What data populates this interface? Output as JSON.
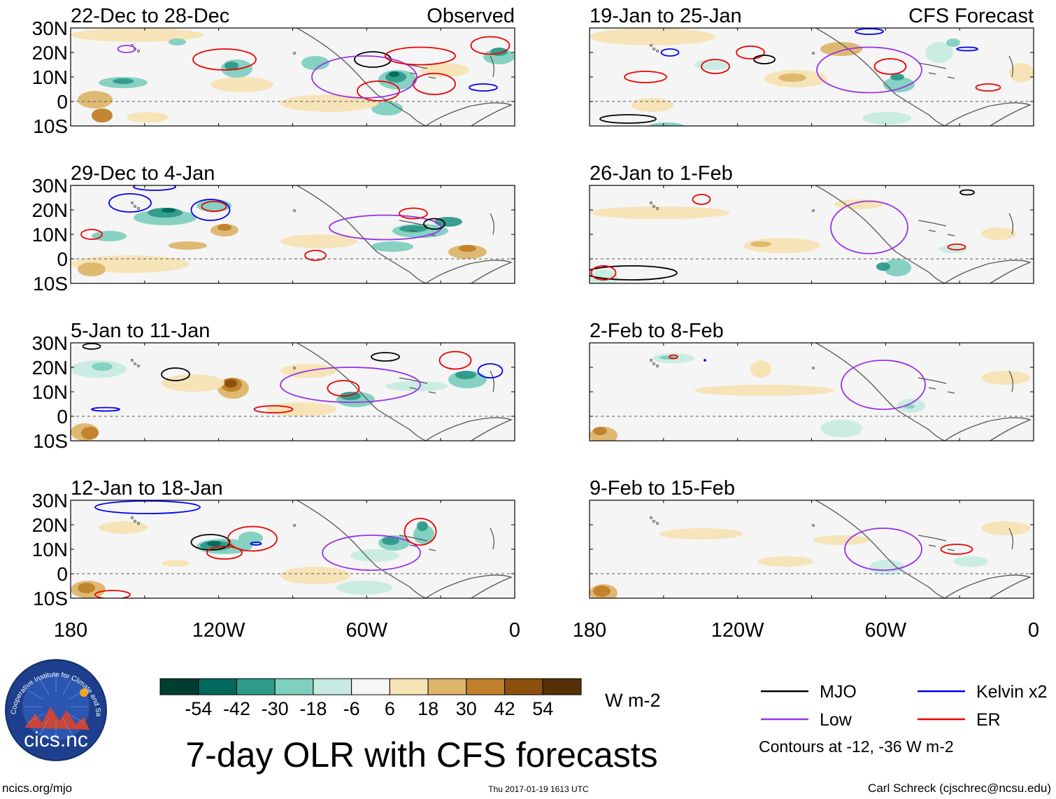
{
  "panels": [
    {
      "id": "p1",
      "title": "22-Dec to 28-Dec",
      "tag": "Observed"
    },
    {
      "id": "p2",
      "title": "29-Dec to 4-Jan",
      "tag": ""
    },
    {
      "id": "p3",
      "title": "5-Jan to 11-Jan",
      "tag": ""
    },
    {
      "id": "p4",
      "title": "12-Jan to 18-Jan",
      "tag": ""
    },
    {
      "id": "p5",
      "title": "19-Jan to 25-Jan",
      "tag": "CFS Forecast"
    },
    {
      "id": "p6",
      "title": "26-Jan to 1-Feb",
      "tag": ""
    },
    {
      "id": "p7",
      "title": "2-Feb to 8-Feb",
      "tag": ""
    },
    {
      "id": "p8",
      "title": "9-Feb to 15-Feb",
      "tag": ""
    }
  ],
  "lat_labels": [
    "30N",
    "20N",
    "10N",
    "0",
    "10S"
  ],
  "lon_labels": [
    "180",
    "120W",
    "60W",
    "0"
  ],
  "colorbar": {
    "ticks": [
      "-54",
      "-42",
      "-30",
      "-18",
      "-6",
      "6",
      "18",
      "30",
      "42",
      "54"
    ],
    "colors": [
      "#003d31",
      "#00695c",
      "#2e9a8a",
      "#7fcfbf",
      "#c7ebe2",
      "#f5f5f5",
      "#f6e3b4",
      "#ddb56b",
      "#bf8029",
      "#8a4e0d",
      "#553108"
    ],
    "unit": "W m-2"
  },
  "legend": [
    {
      "label": "MJO",
      "color": "#000000"
    },
    {
      "label": "Kelvin x2",
      "color": "#0000ee"
    },
    {
      "label": "Low",
      "color": "#9932e6"
    },
    {
      "label": "ER",
      "color": "#ee0000"
    }
  ],
  "contour_note": "Contours at -12, -36 W m-2",
  "main_title": "7-day OLR with CFS forecasts",
  "logo_text": "cics.nc",
  "logo_ring": "Cooperative Institute for Climate and Satellites",
  "footer": {
    "left": "ncics.org/mjo",
    "center": "Thu 2017-01-19 1613 UTC",
    "right": "Carl Schreck (cjschrec@ncsu.edu)"
  }
}
